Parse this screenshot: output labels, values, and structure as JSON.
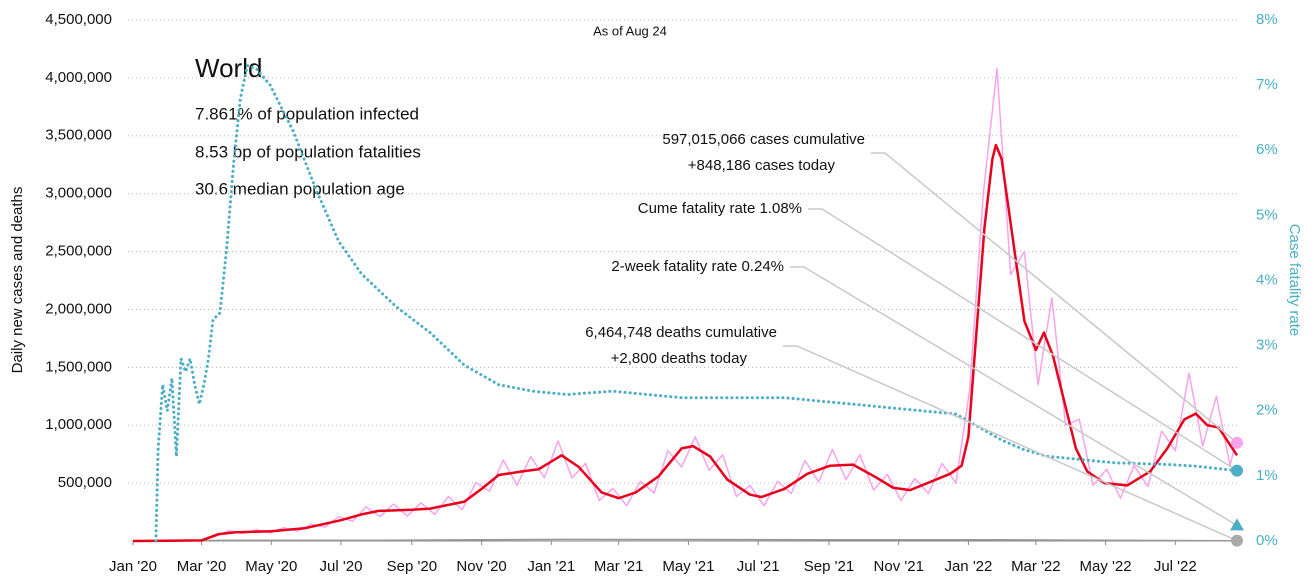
{
  "chart_data": {
    "type": "line",
    "subtitle": "As of Aug 24",
    "ylabel": "Daily new cases and deaths",
    "y2label": "Case fatality rate",
    "y2color": "#4aaec4",
    "annotations": [
      "World",
      "7.861% of population infected",
      "8.53 bp of population fatalities",
      "30.6 median population age"
    ],
    "xlim": [
      0,
      966
    ],
    "xticks": [
      {
        "value": 0,
        "label": "Jan '20"
      },
      {
        "value": 60,
        "label": "Mar '20"
      },
      {
        "value": 121,
        "label": "May '20"
      },
      {
        "value": 182,
        "label": "Jul '20"
      },
      {
        "value": 244,
        "label": "Sep '20"
      },
      {
        "value": 305,
        "label": "Nov '20"
      },
      {
        "value": 366,
        "label": "Jan '21"
      },
      {
        "value": 425,
        "label": "Mar '21"
      },
      {
        "value": 486,
        "label": "May '21"
      },
      {
        "value": 547,
        "label": "Jul '21"
      },
      {
        "value": 609,
        "label": "Sep '21"
      },
      {
        "value": 670,
        "label": "Nov '21"
      },
      {
        "value": 731,
        "label": "Jan '22"
      },
      {
        "value": 790,
        "label": "Mar '22"
      },
      {
        "value": 851,
        "label": "May '22"
      },
      {
        "value": 912,
        "label": "Jul '22"
      }
    ],
    "ylim": [
      0,
      4500000
    ],
    "yticks": [
      {
        "value": 500000,
        "label": "500,000"
      },
      {
        "value": 1000000,
        "label": "1,000,000"
      },
      {
        "value": 1500000,
        "label": "1,500,000"
      },
      {
        "value": 2000000,
        "label": "2,000,000"
      },
      {
        "value": 2500000,
        "label": "2,500,000"
      },
      {
        "value": 3000000,
        "label": "3,000,000"
      },
      {
        "value": 3500000,
        "label": "3,500,000"
      },
      {
        "value": 4000000,
        "label": "4,000,000"
      },
      {
        "value": 4500000,
        "label": "4,500,000"
      }
    ],
    "y2lim": [
      0,
      8
    ],
    "y2ticks": [
      {
        "value": 0,
        "label": "0%"
      },
      {
        "value": 1,
        "label": "1%"
      },
      {
        "value": 2,
        "label": "2%"
      },
      {
        "value": 3,
        "label": "3%"
      },
      {
        "value": 4,
        "label": "4%"
      },
      {
        "value": 5,
        "label": "5%"
      },
      {
        "value": 6,
        "label": "6%"
      },
      {
        "value": 7,
        "label": "7%"
      },
      {
        "value": 8,
        "label": "8%"
      }
    ],
    "grid": true,
    "series": [
      {
        "color": "#f7a3ec",
        "width": 1.5,
        "x": [
          0,
          12,
          24,
          36,
          48,
          60,
          72,
          84,
          96,
          108,
          120,
          132,
          144,
          156,
          168,
          180,
          192,
          204,
          216,
          228,
          240,
          252,
          264,
          276,
          288,
          300,
          312,
          324,
          336,
          348,
          360,
          372,
          384,
          396,
          408,
          420,
          432,
          444,
          456,
          468,
          480,
          492,
          504,
          516,
          528,
          540,
          552,
          564,
          576,
          588,
          600,
          612,
          624,
          636,
          648,
          660,
          672,
          684,
          696,
          708,
          720,
          732,
          744,
          756,
          768,
          780,
          792,
          804,
          816,
          828,
          840,
          852,
          864,
          876,
          888,
          900,
          912,
          924,
          936,
          948,
          960,
          966
        ],
        "values": [
          0,
          1200,
          1200,
          3000,
          2800,
          6000,
          40000,
          90000,
          65000,
          98000,
          70000,
          115000,
          85000,
          145000,
          120000,
          210000,
          170000,
          295000,
          210000,
          320000,
          215000,
          330000,
          230000,
          385000,
          270000,
          505000,
          430000,
          700000,
          480000,
          730000,
          545000,
          865000,
          545000,
          670000,
          350000,
          455000,
          305000,
          515000,
          415000,
          780000,
          640000,
          900000,
          610000,
          745000,
          385000,
          480000,
          305000,
          515000,
          410000,
          695000,
          510000,
          790000,
          530000,
          745000,
          440000,
          575000,
          350000,
          540000,
          410000,
          670000,
          500000,
          1300000,
          3000000,
          4080000,
          2300000,
          2500000,
          1350000,
          2100000,
          1000000,
          1050000,
          480000,
          620000,
          370000,
          650000,
          470000,
          950000,
          780000,
          1450000,
          820000,
          1250000,
          650000,
          900000
        ]
      },
      {
        "color": "#999999",
        "width": 1.5,
        "x": [
          0,
          90,
          200,
          380,
          480,
          600,
          750,
          966
        ],
        "values": [
          0,
          7000,
          6000,
          14000,
          13000,
          10000,
          10000,
          2800
        ]
      },
      {
        "color": "#e8001c",
        "width": 2.5,
        "x": [
          0,
          30,
          60,
          75,
          90,
          121,
          150,
          182,
          200,
          215,
          244,
          260,
          290,
          305,
          320,
          340,
          355,
          375,
          390,
          410,
          425,
          440,
          460,
          480,
          490,
          505,
          520,
          540,
          550,
          570,
          590,
          610,
          630,
          650,
          665,
          680,
          700,
          715,
          725,
          731,
          738,
          745,
          752,
          755,
          760,
          770,
          780,
          790,
          797,
          805,
          815,
          825,
          835,
          850,
          870,
          890,
          905,
          920,
          930,
          940,
          950,
          960,
          966
        ],
        "values": [
          0,
          2000,
          5000,
          60000,
          75000,
          85000,
          110000,
          180000,
          230000,
          260000,
          270000,
          280000,
          340000,
          450000,
          570000,
          600000,
          620000,
          740000,
          640000,
          420000,
          370000,
          420000,
          560000,
          800000,
          820000,
          730000,
          530000,
          400000,
          380000,
          450000,
          580000,
          650000,
          660000,
          550000,
          460000,
          440000,
          520000,
          580000,
          650000,
          900000,
          1800000,
          2700000,
          3300000,
          3420000,
          3300000,
          2600000,
          1900000,
          1650000,
          1800000,
          1600000,
          1200000,
          800000,
          600000,
          500000,
          480000,
          600000,
          800000,
          1050000,
          1100000,
          1000000,
          980000,
          830000,
          740000
        ]
      },
      {
        "color": "#4aaec4",
        "width": 3,
        "dotted": true,
        "axis": "y2",
        "x": [
          20,
          22,
          26,
          30,
          34,
          38,
          42,
          46,
          50,
          54,
          58,
          62,
          66,
          70,
          76,
          82,
          88,
          94,
          100,
          108,
          120,
          140,
          160,
          180,
          200,
          230,
          260,
          290,
          320,
          350,
          380,
          420,
          450,
          480,
          510,
          540,
          570,
          600,
          630,
          660,
          690,
          720,
          740,
          760,
          780,
          800,
          830,
          860,
          900,
          930,
          966
        ],
        "values": [
          0,
          1.4,
          2.4,
          2.0,
          2.5,
          1.3,
          2.8,
          2.6,
          2.8,
          2.4,
          2.1,
          2.4,
          2.8,
          3.4,
          3.5,
          4.5,
          5.8,
          6.8,
          7.3,
          7.25,
          7.0,
          6.3,
          5.4,
          4.6,
          4.1,
          3.6,
          3.2,
          2.7,
          2.4,
          2.3,
          2.25,
          2.3,
          2.25,
          2.2,
          2.2,
          2.2,
          2.2,
          2.15,
          2.1,
          2.05,
          2.0,
          1.95,
          1.75,
          1.55,
          1.4,
          1.3,
          1.25,
          1.2,
          1.18,
          1.15,
          1.08
        ]
      }
    ],
    "callouts": [
      {
        "lines": [
          "597,015,066 cases cumulative",
          "+848,186 cases today"
        ],
        "value": 848186,
        "axis": "y",
        "marker": "circle",
        "color": "#f7a3ec"
      },
      {
        "lines": [
          "Cume fatality rate 1.08%"
        ],
        "value": 1.08,
        "axis": "y2",
        "marker": "circle",
        "color": "#4aaec4"
      },
      {
        "lines": [
          "2-week fatality rate 0.24%"
        ],
        "value": 0.24,
        "axis": "y2",
        "marker": "triangle",
        "color": "#4aaec4"
      },
      {
        "lines": [
          "6,464,748 deaths cumulative",
          "+2,800 deaths today"
        ],
        "value": 2800,
        "axis": "y",
        "marker": "circle",
        "color": "#aaaaaa"
      }
    ]
  }
}
